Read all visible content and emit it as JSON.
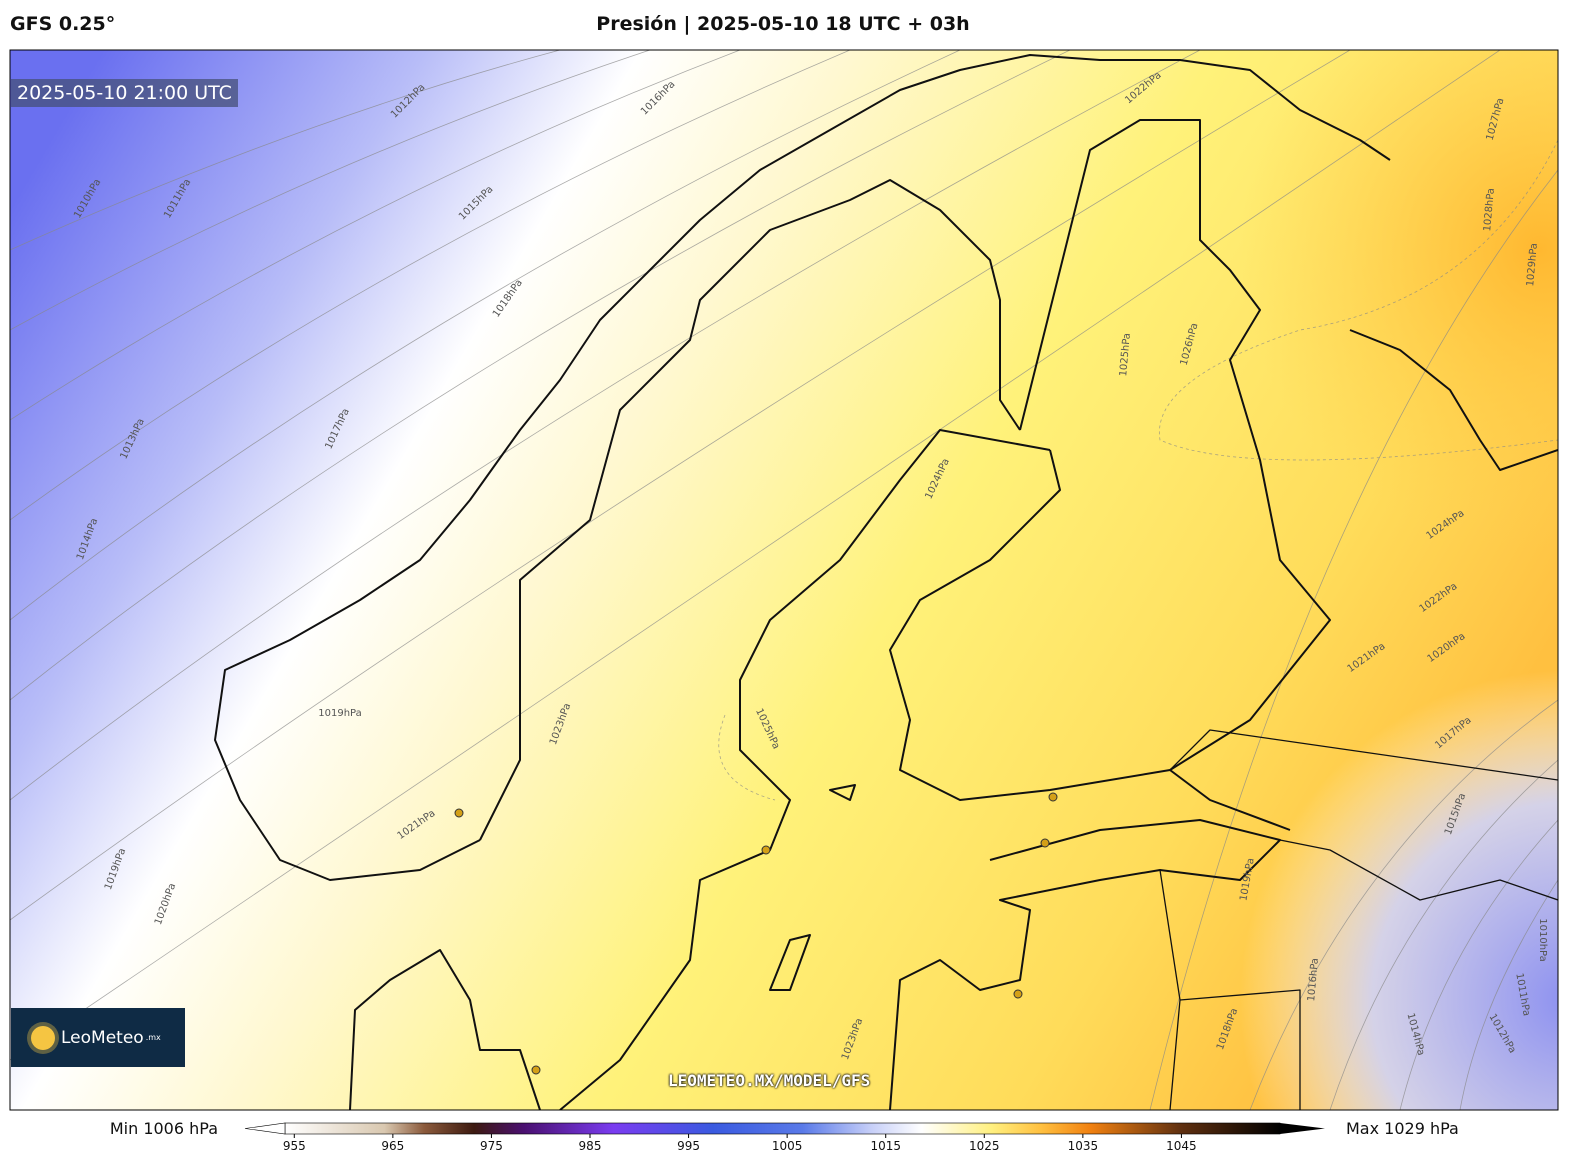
{
  "header": {
    "model": "GFS 0.25°",
    "title": "Presión | 2025-05-10 18 UTC + 03h"
  },
  "map": {
    "valid_time": "2025-05-10 21:00 UTC",
    "watermark": "LEOMETEO.MX/MODEL/GFS",
    "logo": {
      "name": "LeoMeteo",
      "suffix": ".mx"
    },
    "isobar_labels": [
      "1012hPa",
      "1016hPa",
      "1015hPa",
      "1010hPa",
      "1011hPa",
      "1018hPa",
      "1017hPa",
      "1013hPa",
      "1014hPa",
      "1019hPa",
      "1021hPa",
      "1019hPa",
      "1020hPa",
      "1023hPa",
      "1025hPa",
      "1024hPa",
      "1025hPa",
      "1026hPa",
      "1022hPa",
      "1027hPa",
      "1028hPa",
      "1029hPa",
      "1024hPa",
      "1022hPa",
      "1020hPa",
      "1021hPa",
      "1017hPa",
      "1015hPa",
      "1019hPa",
      "1016hPa",
      "1018hPa",
      "1023hPa",
      "1014hPa",
      "1012hPa",
      "1011hPa",
      "1010hPa"
    ]
  },
  "colorbar": {
    "min_label": "Min 1006 hPa",
    "max_label": "Max 1029 hPa",
    "clim": [
      950,
      1055
    ],
    "ticks": [
      955,
      965,
      975,
      985,
      995,
      1005,
      1015,
      1025,
      1035,
      1045
    ]
  }
}
